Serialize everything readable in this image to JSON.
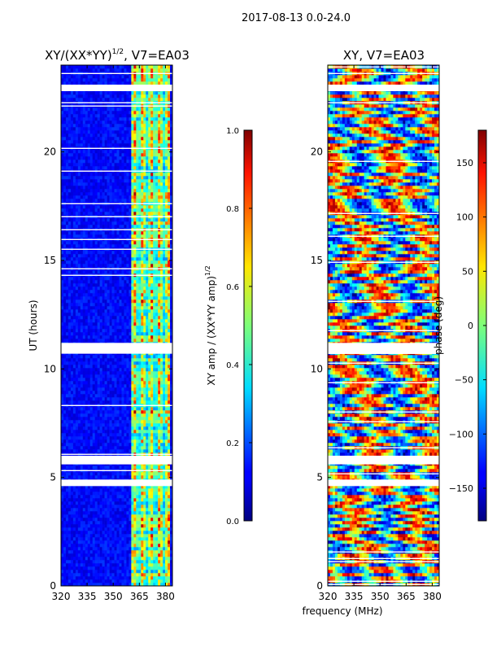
{
  "figure": {
    "suptitle": "2017-08-13 0.0-24.0"
  },
  "chart_data": [
    {
      "type": "heatmap",
      "title_main": "XY/(XX*YY)",
      "title_sup": "1/2",
      "title_tail": ", V7=EA03",
      "xlabel": "",
      "ylabel": "UT (hours)",
      "xlim": [
        320,
        384
      ],
      "ylim": [
        0,
        24
      ],
      "xticks": [
        "320",
        "335",
        "350",
        "365",
        "380"
      ],
      "xtick_values": [
        320,
        335,
        350,
        365,
        380
      ],
      "yticks": [
        "0",
        "5",
        "10",
        "15",
        "20"
      ],
      "ytick_values": [
        0,
        5,
        10,
        15,
        20
      ],
      "flagged_band_MHz": [
        361,
        382
      ],
      "gap_bands_hours": [
        [
          4.6,
          4.9
        ],
        [
          5.6,
          6.0
        ],
        [
          10.7,
          11.2
        ],
        [
          22.8,
          23.1
        ]
      ],
      "colorbar": {
        "label_main": "XY amp / (XX*YY amp)",
        "label_sup": "1/2",
        "range": [
          0.0,
          1.0
        ],
        "ticks": [
          "0.0",
          "0.2",
          "0.4",
          "0.6",
          "0.8",
          "1.0"
        ],
        "tick_values": [
          0,
          0.2,
          0.4,
          0.6,
          0.8,
          1.0
        ]
      }
    },
    {
      "type": "heatmap",
      "title": "XY, V7=EA03",
      "xlabel": "frequency (MHz)",
      "ylabel": "",
      "xlim": [
        320,
        384
      ],
      "ylim": [
        0,
        24
      ],
      "xticks": [
        "320",
        "335",
        "350",
        "365",
        "380"
      ],
      "xtick_values": [
        320,
        335,
        350,
        365,
        380
      ],
      "yticks": [
        "0",
        "5",
        "10",
        "15",
        "20"
      ],
      "ytick_values": [
        0,
        5,
        10,
        15,
        20
      ],
      "gap_bands_hours": [
        [
          4.6,
          4.9
        ],
        [
          5.6,
          6.0
        ],
        [
          10.7,
          11.2
        ],
        [
          22.8,
          23.1
        ]
      ],
      "colorbar": {
        "label": "phase (deg)",
        "range": [
          -180,
          180
        ],
        "ticks": [
          "150",
          "100",
          "50",
          "0",
          "−50",
          "−100",
          "−150"
        ],
        "tick_values": [
          150,
          100,
          50,
          0,
          -50,
          -100,
          -150
        ]
      }
    }
  ]
}
